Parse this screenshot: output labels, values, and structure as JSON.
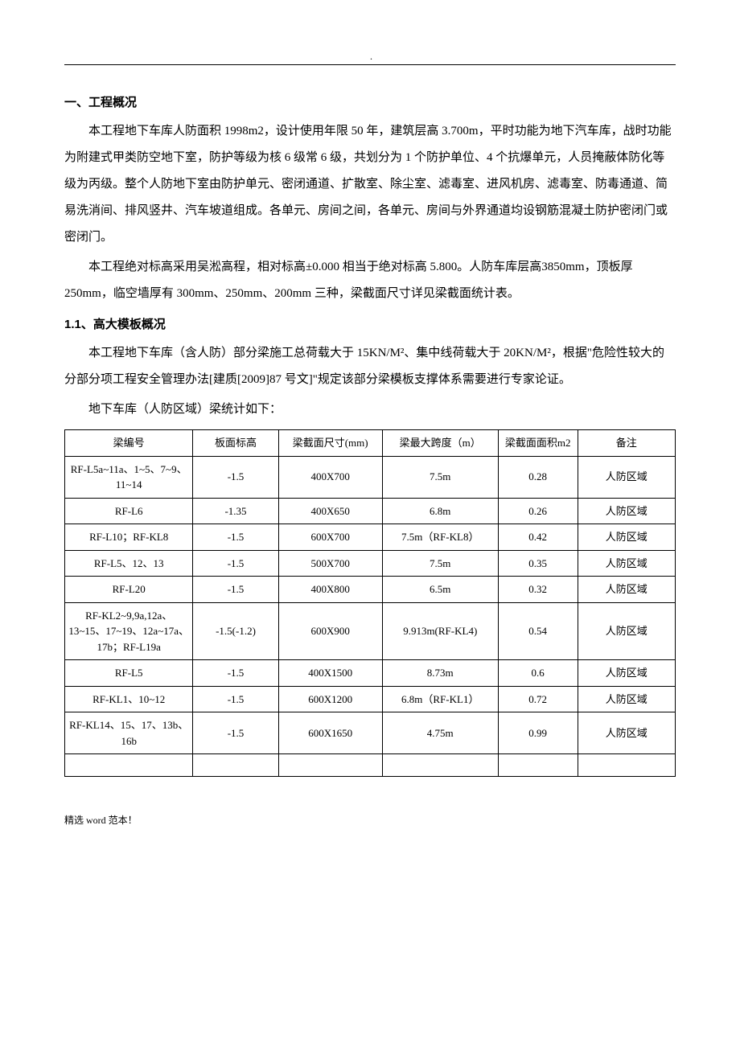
{
  "section1": {
    "heading": "一、工程概况",
    "para1": "本工程地下车库人防面积 1998m2，设计使用年限 50 年，建筑层高 3.700m，平时功能为地下汽车库，战时功能为附建式甲类防空地下室，防护等级为核 6 级常 6 级，共划分为 1 个防护单位、4 个抗爆单元，人员掩蔽体防化等级为丙级。整个人防地下室由防护单元、密闭通道、扩散室、除尘室、滤毒室、进风机房、滤毒室、防毒通道、简易洗消间、排风竖井、汽车坡道组成。各单元、房间之间，各单元、房间与外界通道均设钢筋混凝土防护密闭门或密闭门。",
    "para2": "本工程绝对标高采用吴淞高程，相对标高±0.000 相当于绝对标高 5.800。人防车库层高3850mm，顶板厚 250mm，临空墙厚有 300mm、250mm、200mm 三种，梁截面尺寸详见梁截面统计表。"
  },
  "section1_1": {
    "heading": "1.1、高大模板概况",
    "para1": "本工程地下车库（含人防）部分梁施工总荷载大于 15KN/M²、集中线荷载大于 20KN/M²，根据\"危险性较大的分部分项工程安全管理办法[建质[2009]87 号文]\"规定该部分梁模板支撑体系需要进行专家论证。",
    "para2": "地下车库（人防区域）梁统计如下："
  },
  "table": {
    "columns": [
      "梁编号",
      "板面标高",
      "梁截面尺寸(mm)",
      "梁最大跨度（m）",
      "梁截面面积m2",
      "备注"
    ],
    "rows": [
      [
        "RF-L5a~11a、1~5、7~9、11~14",
        "-1.5",
        "400X700",
        "7.5m",
        "0.28",
        "人防区域"
      ],
      [
        "RF-L6",
        "-1.35",
        "400X650",
        "6.8m",
        "0.26",
        "人防区域"
      ],
      [
        "RF-L10；RF-KL8",
        "-1.5",
        "600X700",
        "7.5m（RF-KL8）",
        "0.42",
        "人防区域"
      ],
      [
        "RF-L5、12、13",
        "-1.5",
        "500X700",
        "7.5m",
        "0.35",
        "人防区域"
      ],
      [
        "RF-L20",
        "-1.5",
        "400X800",
        "6.5m",
        "0.32",
        "人防区域"
      ],
      [
        "RF-KL2~9,9a,12a、13~15、17~19、12a~17a、17b；RF-L19a",
        "-1.5(-1.2)",
        "600X900",
        "9.913m(RF-KL4)",
        "0.54",
        "人防区域"
      ],
      [
        "RF-L5",
        "-1.5",
        "400X1500",
        "8.73m",
        "0.6",
        "人防区域"
      ],
      [
        "RF-KL1、10~12",
        "-1.5",
        "600X1200",
        "6.8m（RF-KL1）",
        "0.72",
        "人防区域"
      ],
      [
        "RF-KL14、15、17、13b、16b",
        "-1.5",
        "600X1650",
        "4.75m",
        "0.99",
        "人防区域"
      ]
    ],
    "column_widths": [
      "21%",
      "14%",
      "17%",
      "19%",
      "13%",
      "16%"
    ],
    "border_color": "#000000",
    "background_color": "#ffffff",
    "font_size": 13
  },
  "footer": "精选 word 范本！",
  "colors": {
    "text": "#000000",
    "background": "#ffffff"
  }
}
